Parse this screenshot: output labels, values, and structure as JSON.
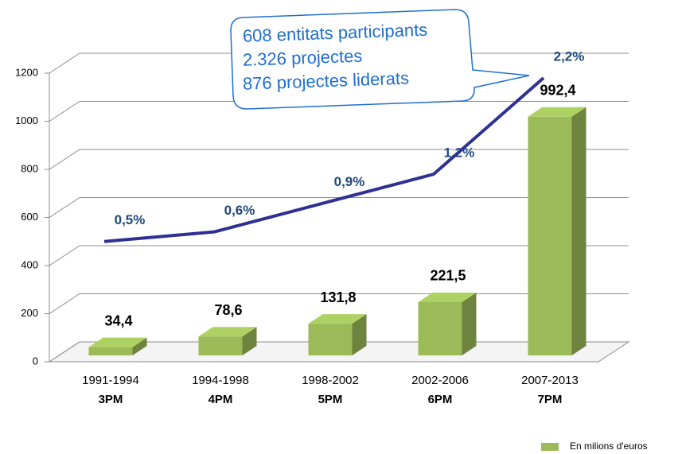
{
  "chart_data": {
    "type": "bar",
    "categories": [
      "1991-1994",
      "1994-1998",
      "1998-2002",
      "2002-2006",
      "2007-2013"
    ],
    "programmes": [
      "3PM",
      "4PM",
      "5PM",
      "6PM",
      "7PM"
    ],
    "series": [
      {
        "name": "En milions d'euros",
        "type": "bar",
        "color": "#9bbb59",
        "values": [
          34.4,
          78.6,
          131.8,
          221.5,
          992.4
        ],
        "value_labels": [
          "34,4",
          "78,6",
          "131,8",
          "221,5",
          "992,4"
        ]
      },
      {
        "type": "line",
        "axis": "y2",
        "color": "#2e3192",
        "values": [
          0.5,
          0.6,
          0.9,
          1.2,
          2.2
        ],
        "value_labels": [
          "0,5%",
          "0,6%",
          "0,9%",
          "1,2%",
          "2,2%"
        ]
      }
    ],
    "ylim": [
      0,
      1200
    ],
    "yticks": [
      0,
      200,
      400,
      600,
      800,
      1000,
      1200
    ],
    "y2lim": [
      -0.75,
      2.25
    ],
    "grid": true,
    "annotations": [
      "608 entitats participants",
      "2.326 projectes",
      "876 projectes liderats"
    ],
    "legend": "bottom-right"
  }
}
